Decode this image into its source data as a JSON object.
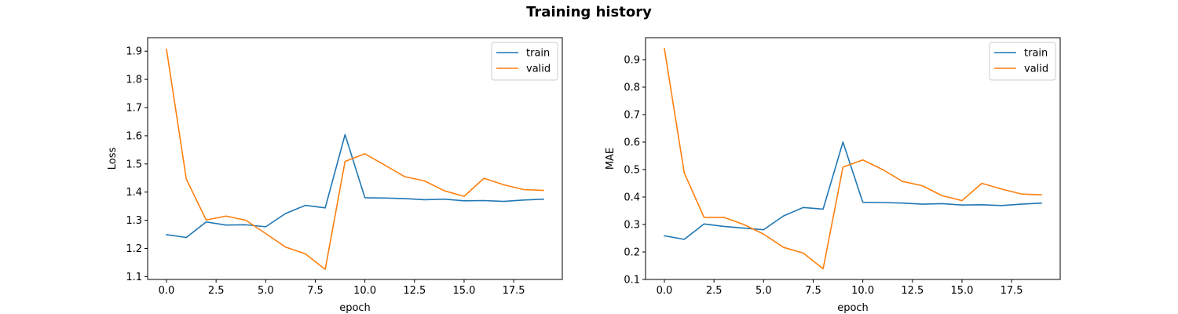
{
  "figure": {
    "title": "Training history"
  },
  "colors": {
    "train": "#1f77b4",
    "valid": "#ff7f0e"
  },
  "chart_data": [
    {
      "type": "line",
      "title": "",
      "xlabel": "epoch",
      "ylabel": "Loss",
      "xlim": [
        -0.95,
        19.95
      ],
      "ylim": [
        1.09,
        1.948
      ],
      "xticks": [
        0.0,
        2.5,
        5.0,
        7.5,
        10.0,
        12.5,
        15.0,
        17.5
      ],
      "xtick_labels": [
        "0.0",
        "2.5",
        "5.0",
        "7.5",
        "10.0",
        "12.5",
        "15.0",
        "17.5"
      ],
      "yticks": [
        1.1,
        1.2,
        1.3,
        1.4,
        1.5,
        1.6,
        1.7,
        1.8,
        1.9
      ],
      "ytick_labels": [
        "1.1",
        "1.2",
        "1.3",
        "1.4",
        "1.5",
        "1.6",
        "1.7",
        "1.8",
        "1.9"
      ],
      "legend_position": "top-right",
      "grid": false,
      "x": [
        0,
        1,
        2,
        3,
        4,
        5,
        6,
        7,
        8,
        9,
        10,
        11,
        12,
        13,
        14,
        15,
        16,
        17,
        18,
        19
      ],
      "series": [
        {
          "name": "train",
          "values": [
            1.249,
            1.239,
            1.294,
            1.283,
            1.284,
            1.277,
            1.324,
            1.353,
            1.344,
            1.604,
            1.38,
            1.379,
            1.377,
            1.373,
            1.375,
            1.369,
            1.37,
            1.367,
            1.372,
            1.375
          ]
        },
        {
          "name": "valid",
          "values": [
            1.907,
            1.446,
            1.301,
            1.315,
            1.3,
            1.253,
            1.205,
            1.181,
            1.126,
            1.509,
            1.536,
            1.496,
            1.455,
            1.44,
            1.405,
            1.385,
            1.449,
            1.426,
            1.409,
            1.406
          ]
        }
      ]
    },
    {
      "type": "line",
      "title": "",
      "xlabel": "epoch",
      "ylabel": "MAE",
      "xlim": [
        -0.95,
        19.95
      ],
      "ylim": [
        0.1,
        0.98
      ],
      "xticks": [
        0.0,
        2.5,
        5.0,
        7.5,
        10.0,
        12.5,
        15.0,
        17.5
      ],
      "xtick_labels": [
        "0.0",
        "2.5",
        "5.0",
        "7.5",
        "10.0",
        "12.5",
        "15.0",
        "17.5"
      ],
      "yticks": [
        0.1,
        0.2,
        0.3,
        0.4,
        0.5,
        0.6,
        0.7,
        0.8,
        0.9
      ],
      "ytick_labels": [
        "0.1",
        "0.2",
        "0.3",
        "0.4",
        "0.5",
        "0.6",
        "0.7",
        "0.8",
        "0.9"
      ],
      "legend_position": "top-right",
      "grid": false,
      "x": [
        0,
        1,
        2,
        3,
        4,
        5,
        6,
        7,
        8,
        9,
        10,
        11,
        12,
        13,
        14,
        15,
        16,
        17,
        18,
        19
      ],
      "series": [
        {
          "name": "train",
          "values": [
            0.259,
            0.246,
            0.302,
            0.293,
            0.287,
            0.281,
            0.331,
            0.362,
            0.356,
            0.6,
            0.381,
            0.38,
            0.378,
            0.374,
            0.376,
            0.371,
            0.372,
            0.369,
            0.374,
            0.378
          ]
        },
        {
          "name": "valid",
          "values": [
            0.94,
            0.488,
            0.326,
            0.326,
            0.3,
            0.265,
            0.217,
            0.196,
            0.139,
            0.509,
            0.535,
            0.5,
            0.457,
            0.441,
            0.405,
            0.387,
            0.45,
            0.429,
            0.411,
            0.408
          ]
        }
      ]
    }
  ]
}
